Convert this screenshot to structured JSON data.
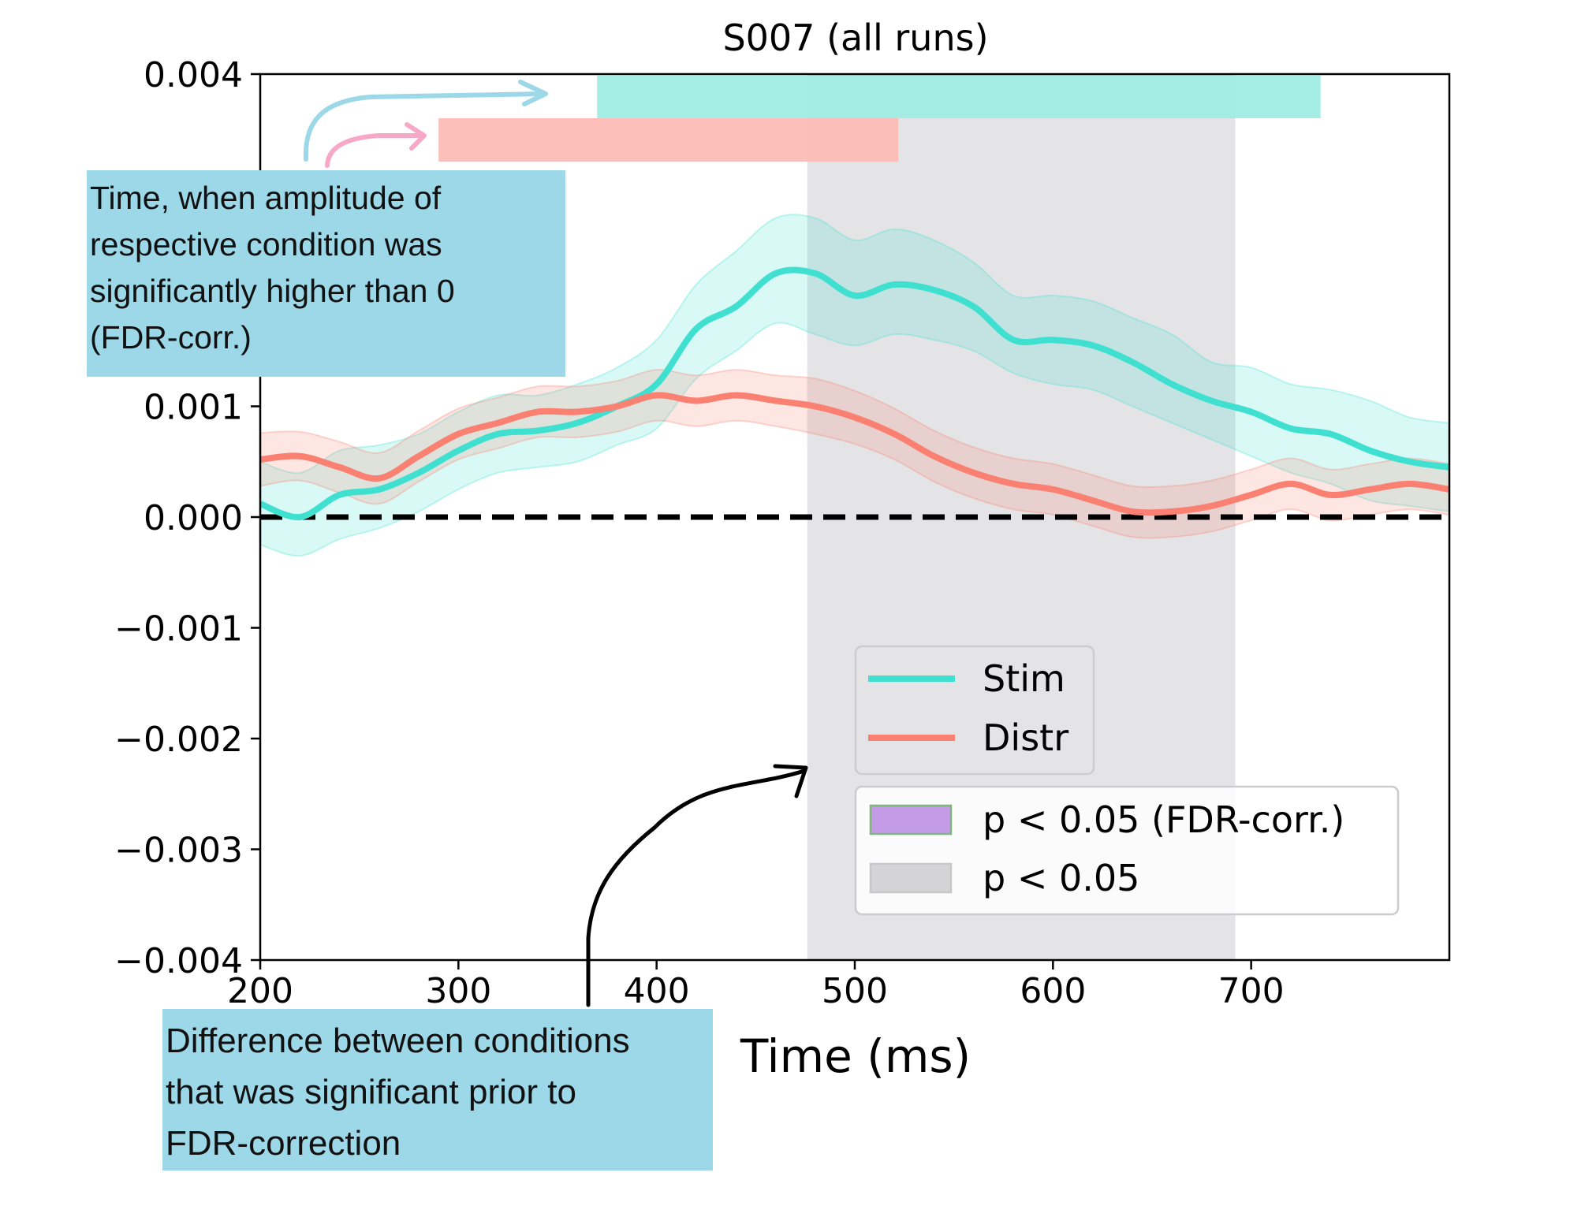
{
  "chart_data": {
    "type": "line",
    "title": "S007 (all runs)",
    "xlabel": "Time (ms)",
    "ylabel": "",
    "xlim": [
      200,
      800
    ],
    "ylim": [
      -0.004,
      0.004
    ],
    "x_ticks": [
      200,
      300,
      400,
      500,
      600,
      700
    ],
    "y_ticks": [
      -0.004,
      -0.003,
      -0.002,
      -0.001,
      0.0,
      0.001,
      0.004
    ],
    "y_tick_labels": [
      "−0.004",
      "−0.003",
      "−0.002",
      "−0.001",
      "0.000",
      "0.001",
      "0.004"
    ],
    "grid": false,
    "x": [
      200,
      220,
      240,
      260,
      280,
      300,
      320,
      340,
      360,
      380,
      400,
      420,
      440,
      460,
      480,
      500,
      520,
      540,
      560,
      580,
      600,
      620,
      640,
      660,
      680,
      700,
      720,
      740,
      760,
      780,
      800
    ],
    "series": [
      {
        "name": "Stim",
        "color": "#40e0d0",
        "values": [
          0.00012,
          0.0,
          0.0002,
          0.00025,
          0.0004,
          0.0006,
          0.00075,
          0.00078,
          0.00085,
          0.001,
          0.0012,
          0.0017,
          0.0019,
          0.0022,
          0.0022,
          0.002,
          0.0021,
          0.00205,
          0.0019,
          0.0016,
          0.0016,
          0.00155,
          0.0014,
          0.0012,
          0.00105,
          0.00095,
          0.0008,
          0.00075,
          0.0006,
          0.0005,
          0.00045
        ],
        "ci_lower": [
          -0.00025,
          -0.00035,
          -0.0002,
          -0.0001,
          5e-05,
          0.00025,
          0.0004,
          0.00045,
          0.0005,
          0.00065,
          0.0008,
          0.00125,
          0.0015,
          0.00175,
          0.00165,
          0.00155,
          0.00165,
          0.0016,
          0.0015,
          0.0013,
          0.0012,
          0.00115,
          0.001,
          0.00085,
          0.0007,
          0.00055,
          0.0004,
          0.0003,
          0.00015,
          0.0001,
          5e-05
        ],
        "ci_upper": [
          0.0005,
          0.0004,
          0.0006,
          0.00065,
          0.00075,
          0.00095,
          0.0011,
          0.0011,
          0.0012,
          0.00135,
          0.0016,
          0.0021,
          0.0024,
          0.0027,
          0.0027,
          0.0025,
          0.0026,
          0.0025,
          0.0023,
          0.002,
          0.002,
          0.00195,
          0.0018,
          0.00165,
          0.0014,
          0.00135,
          0.0012,
          0.00115,
          0.00105,
          0.0009,
          0.00085
        ]
      },
      {
        "name": "Distr",
        "color": "#fa8072",
        "values": [
          0.00052,
          0.00055,
          0.00045,
          0.00035,
          0.00055,
          0.00075,
          0.00085,
          0.00095,
          0.00095,
          0.001,
          0.0011,
          0.00105,
          0.0011,
          0.00105,
          0.001,
          0.0009,
          0.00075,
          0.00055,
          0.0004,
          0.0003,
          0.00025,
          0.00015,
          5e-05,
          5e-05,
          0.0001,
          0.0002,
          0.0003,
          0.0002,
          0.00025,
          0.0003,
          0.00025
        ],
        "ci_lower": [
          0.00028,
          0.00033,
          0.00022,
          0.00012,
          0.00032,
          0.00052,
          0.00062,
          0.00072,
          0.00072,
          0.00077,
          0.00087,
          0.00082,
          0.00087,
          0.00082,
          0.00075,
          0.00066,
          0.00052,
          0.00032,
          0.00017,
          7e-05,
          2e-05,
          -8e-05,
          -0.00018,
          -0.00018,
          -0.00013,
          -3e-05,
          7e-05,
          -3e-05,
          2e-05,
          7e-05,
          2e-05
        ],
        "ci_upper": [
          0.00076,
          0.00077,
          0.00068,
          0.00058,
          0.00078,
          0.00098,
          0.00108,
          0.00118,
          0.00118,
          0.00123,
          0.00133,
          0.00128,
          0.00133,
          0.00128,
          0.00125,
          0.00114,
          0.00098,
          0.00078,
          0.00063,
          0.00053,
          0.00048,
          0.00038,
          0.00028,
          0.00028,
          0.00033,
          0.00043,
          0.00053,
          0.00043,
          0.00048,
          0.00053,
          0.00048
        ]
      }
    ],
    "significance_bars": [
      {
        "series": "Stim",
        "color": "#a0ede4",
        "x_start": 370,
        "x_end": 735
      },
      {
        "series": "Distr",
        "color": "#fcbcb5",
        "x_start": 290,
        "x_end": 522
      }
    ],
    "shaded_region": {
      "x_start": 476,
      "x_end": 692,
      "color": "#e4e4e6"
    },
    "zero_line": {
      "y": 0,
      "style": "dashed",
      "color": "#000000"
    },
    "legend": {
      "placement": "lower-right",
      "lines": [
        {
          "label": "Stim",
          "color": "#40e0d0"
        },
        {
          "label": "Distr",
          "color": "#fa8072"
        }
      ],
      "patches": [
        {
          "label": "p < 0.05 (FDR-corr.)",
          "color": "#c39be7"
        },
        {
          "label": "p < 0.05",
          "color": "#d4d4d6"
        }
      ]
    }
  },
  "annotations": {
    "top_callout": [
      "Time, when amplitude of",
      "respective condition was",
      "significantly higher than 0",
      "(FDR-corr.)"
    ],
    "bottom_callout": [
      "Difference between conditions",
      "that was significant prior to",
      "FDR-correction"
    ]
  }
}
